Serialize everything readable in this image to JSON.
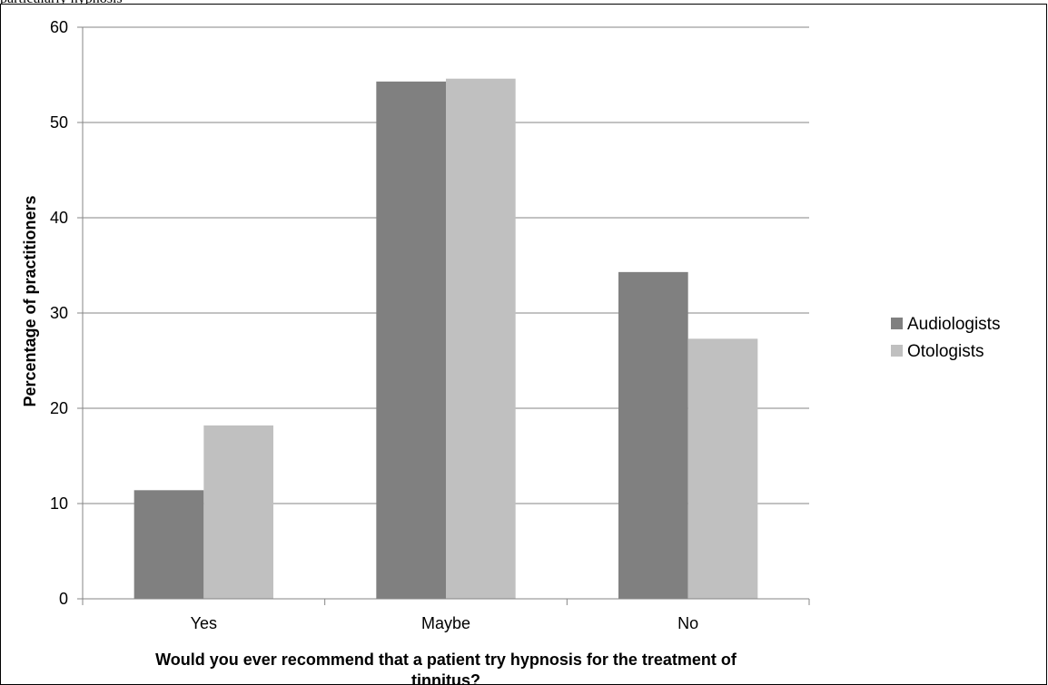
{
  "header_fragment": "particularly hypnosis",
  "chart_data": {
    "type": "bar",
    "title": "",
    "xlabel": "Would you ever recommend that a patient try hypnosis for the treatment of tinnitus?",
    "ylabel": "Percentage of practitioners",
    "categories": [
      "Yes",
      "Maybe",
      "No"
    ],
    "series": [
      {
        "name": "Audiologists",
        "values": [
          11.4,
          54.3,
          34.3
        ],
        "color": "#808080"
      },
      {
        "name": "Otologists",
        "values": [
          18.2,
          54.6,
          27.3
        ],
        "color": "#c0c0c0"
      }
    ],
    "ylim": [
      0,
      60
    ],
    "yticks": [
      0,
      10,
      20,
      30,
      40,
      50,
      60
    ],
    "grid": true,
    "legend_position": "right"
  }
}
